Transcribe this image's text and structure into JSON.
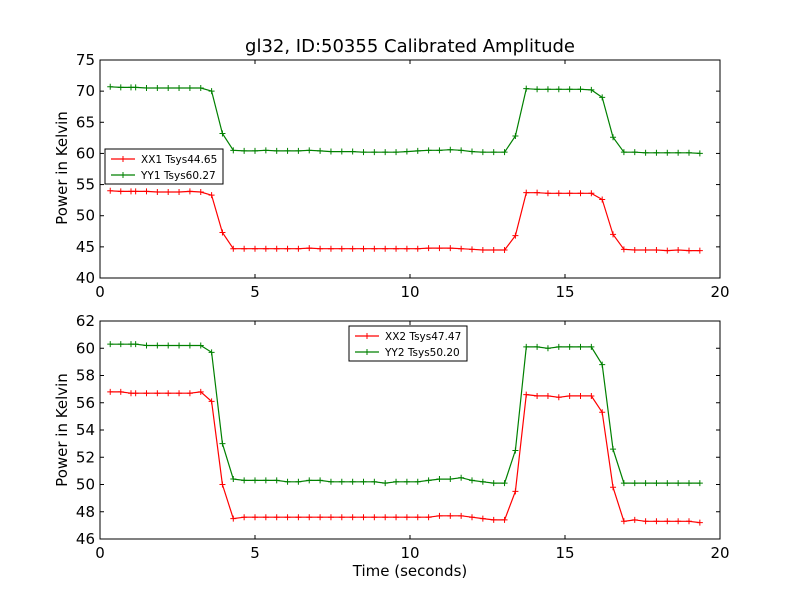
{
  "chart_data": [
    {
      "type": "line",
      "title": "gl32, ID:50355 Calibrated Amplitude",
      "xlabel": "",
      "ylabel": "Power in Kelvin",
      "xlim": [
        0,
        20
      ],
      "ylim": [
        40,
        75
      ],
      "xticks": [
        0,
        5,
        10,
        15,
        20
      ],
      "yticks": [
        40,
        45,
        50,
        55,
        60,
        65,
        70,
        75
      ],
      "legend_position": "center-left",
      "x": [
        0.33,
        0.67,
        1.0,
        1.15,
        1.5,
        1.85,
        2.2,
        2.55,
        2.9,
        3.25,
        3.6,
        3.95,
        4.3,
        4.65,
        5.0,
        5.35,
        5.7,
        6.05,
        6.4,
        6.75,
        7.1,
        7.45,
        7.8,
        8.15,
        8.5,
        8.85,
        9.2,
        9.55,
        9.9,
        10.25,
        10.6,
        10.95,
        11.3,
        11.65,
        12.0,
        12.35,
        12.7,
        13.05,
        13.4,
        13.75,
        14.1,
        14.45,
        14.8,
        15.15,
        15.5,
        15.85,
        16.2,
        16.55,
        16.9,
        17.25,
        17.6,
        17.95,
        18.3,
        18.65,
        19.0,
        19.35
      ],
      "series": [
        {
          "name": "XX1 Tsys44.65",
          "color": "#ff0000",
          "values": [
            54.0,
            53.9,
            53.9,
            53.9,
            53.9,
            53.8,
            53.8,
            53.8,
            53.9,
            53.8,
            53.3,
            47.3,
            44.7,
            44.7,
            44.7,
            44.7,
            44.7,
            44.7,
            44.7,
            44.8,
            44.7,
            44.7,
            44.7,
            44.7,
            44.7,
            44.7,
            44.7,
            44.7,
            44.7,
            44.7,
            44.8,
            44.8,
            44.8,
            44.7,
            44.6,
            44.5,
            44.5,
            44.5,
            46.8,
            53.7,
            53.7,
            53.6,
            53.6,
            53.6,
            53.6,
            53.6,
            52.6,
            47.0,
            44.6,
            44.5,
            44.5,
            44.5,
            44.4,
            44.5,
            44.4,
            44.4
          ]
        },
        {
          "name": "YY1 Tsys60.27",
          "color": "#008000",
          "values": [
            70.7,
            70.6,
            70.6,
            70.6,
            70.5,
            70.5,
            70.5,
            70.5,
            70.5,
            70.5,
            70.0,
            63.2,
            60.5,
            60.4,
            60.4,
            60.5,
            60.4,
            60.4,
            60.4,
            60.5,
            60.4,
            60.3,
            60.3,
            60.3,
            60.2,
            60.2,
            60.2,
            60.2,
            60.3,
            60.4,
            60.5,
            60.5,
            60.6,
            60.5,
            60.3,
            60.2,
            60.2,
            60.2,
            62.8,
            70.4,
            70.3,
            70.3,
            70.3,
            70.3,
            70.3,
            70.2,
            69.0,
            62.6,
            60.2,
            60.2,
            60.1,
            60.1,
            60.1,
            60.1,
            60.1,
            60.0
          ]
        }
      ]
    },
    {
      "type": "line",
      "title": "",
      "xlabel": "Time (seconds)",
      "ylabel": "Power in Kelvin",
      "xlim": [
        0,
        20
      ],
      "ylim": [
        46,
        62
      ],
      "xticks": [
        0,
        5,
        10,
        15,
        20
      ],
      "yticks": [
        46,
        48,
        50,
        52,
        54,
        56,
        58,
        60,
        62
      ],
      "legend_position": "top-center",
      "x": [
        0.33,
        0.67,
        1.0,
        1.15,
        1.5,
        1.85,
        2.2,
        2.55,
        2.9,
        3.25,
        3.6,
        3.95,
        4.3,
        4.65,
        5.0,
        5.35,
        5.7,
        6.05,
        6.4,
        6.75,
        7.1,
        7.45,
        7.8,
        8.15,
        8.5,
        8.85,
        9.2,
        9.55,
        9.9,
        10.25,
        10.6,
        10.95,
        11.3,
        11.65,
        12.0,
        12.35,
        12.7,
        13.05,
        13.4,
        13.75,
        14.1,
        14.45,
        14.8,
        15.15,
        15.5,
        15.85,
        16.2,
        16.55,
        16.9,
        17.25,
        17.6,
        17.95,
        18.3,
        18.65,
        19.0,
        19.35
      ],
      "series": [
        {
          "name": "XX2 Tsys47.47",
          "color": "#ff0000",
          "values": [
            56.8,
            56.8,
            56.7,
            56.7,
            56.7,
            56.7,
            56.7,
            56.7,
            56.7,
            56.8,
            56.1,
            50.0,
            47.5,
            47.6,
            47.6,
            47.6,
            47.6,
            47.6,
            47.6,
            47.6,
            47.6,
            47.6,
            47.6,
            47.6,
            47.6,
            47.6,
            47.6,
            47.6,
            47.6,
            47.6,
            47.6,
            47.7,
            47.7,
            47.7,
            47.6,
            47.5,
            47.4,
            47.4,
            49.5,
            56.6,
            56.5,
            56.5,
            56.4,
            56.5,
            56.5,
            56.5,
            55.3,
            49.8,
            47.3,
            47.4,
            47.3,
            47.3,
            47.3,
            47.3,
            47.3,
            47.2
          ]
        },
        {
          "name": "YY2 Tsys50.20",
          "color": "#008000",
          "values": [
            60.3,
            60.3,
            60.3,
            60.3,
            60.2,
            60.2,
            60.2,
            60.2,
            60.2,
            60.2,
            59.7,
            53.0,
            50.4,
            50.3,
            50.3,
            50.3,
            50.3,
            50.2,
            50.2,
            50.3,
            50.3,
            50.2,
            50.2,
            50.2,
            50.2,
            50.2,
            50.1,
            50.2,
            50.2,
            50.2,
            50.3,
            50.4,
            50.4,
            50.5,
            50.3,
            50.2,
            50.1,
            50.1,
            52.5,
            60.1,
            60.1,
            60.0,
            60.1,
            60.1,
            60.1,
            60.1,
            58.8,
            52.6,
            50.1,
            50.1,
            50.1,
            50.1,
            50.1,
            50.1,
            50.1,
            50.1
          ]
        }
      ]
    }
  ]
}
